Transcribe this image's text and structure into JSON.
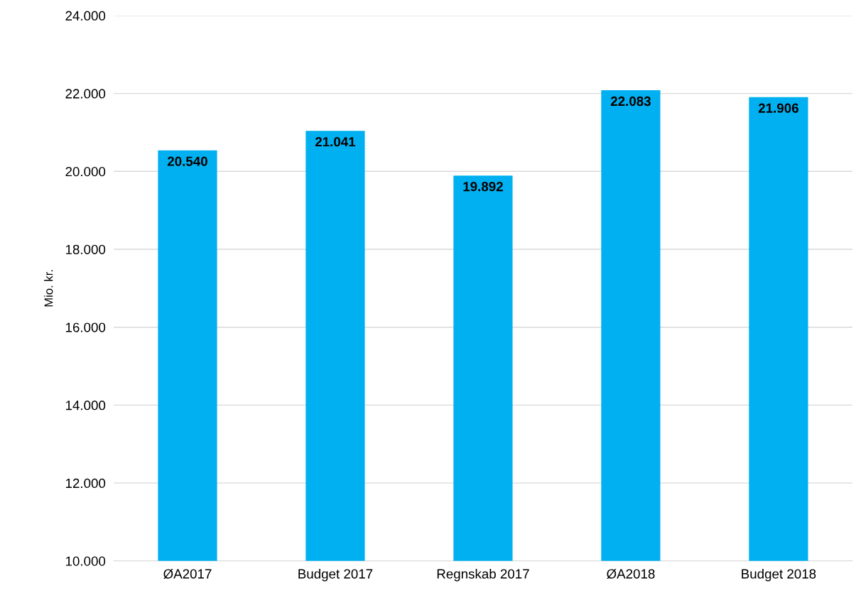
{
  "chart_data": {
    "type": "bar",
    "ylabel": "Mio. kr.",
    "categories": [
      "ØA2017",
      "Budget 2017",
      "Regnskab 2017",
      "ØA2018",
      "Budget 2018"
    ],
    "values": [
      20540,
      21041,
      19892,
      22083,
      21906
    ],
    "value_labels": [
      "20.540",
      "21.041",
      "19.892",
      "22.083",
      "21.906"
    ],
    "color": "#00b0f0",
    "ylim": [
      10000,
      24000
    ],
    "yticks": [
      {
        "value": 10000,
        "label": "10.000"
      },
      {
        "value": 12000,
        "label": "12.000"
      },
      {
        "value": 14000,
        "label": "14.000"
      },
      {
        "value": 16000,
        "label": "16.000"
      },
      {
        "value": 18000,
        "label": "18.000"
      },
      {
        "value": 20000,
        "label": "20.000"
      },
      {
        "value": 22000,
        "label": "22.000"
      },
      {
        "value": 24000,
        "label": "24.000"
      }
    ],
    "grid": "y",
    "legend": false
  }
}
